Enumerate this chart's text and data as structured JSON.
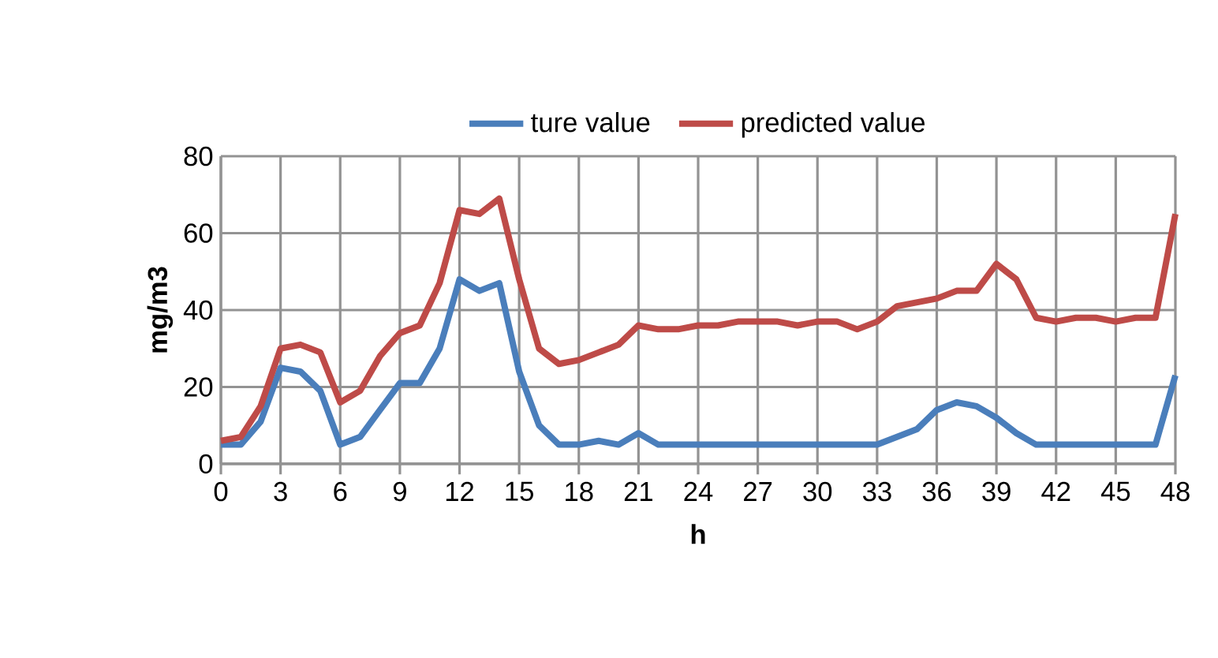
{
  "chart_data": {
    "type": "line",
    "xlabel": "h",
    "ylabel": "mg/m3",
    "x": [
      0,
      1,
      2,
      3,
      4,
      5,
      6,
      7,
      8,
      9,
      10,
      11,
      12,
      13,
      14,
      15,
      16,
      17,
      18,
      19,
      20,
      21,
      22,
      23,
      24,
      25,
      26,
      27,
      28,
      29,
      30,
      31,
      32,
      33,
      34,
      35,
      36,
      37,
      38,
      39,
      40,
      41,
      42,
      43,
      44,
      45,
      46,
      47,
      48
    ],
    "xlim": [
      0,
      48
    ],
    "xticks": [
      0,
      3,
      6,
      9,
      12,
      15,
      18,
      21,
      24,
      27,
      30,
      33,
      36,
      39,
      42,
      45,
      48
    ],
    "ylim": [
      0,
      80
    ],
    "yticks": [
      0,
      20,
      40,
      60,
      80
    ],
    "grid": true,
    "legend": "top",
    "marker": "none",
    "line_style": "solid",
    "series": [
      {
        "name": "ture value",
        "color": "#4a7ebb",
        "values": [
          5,
          5,
          11,
          25,
          24,
          19,
          5,
          7,
          14,
          21,
          21,
          30,
          48,
          45,
          47,
          24,
          10,
          5,
          5,
          6,
          5,
          8,
          5,
          5,
          5,
          5,
          5,
          5,
          5,
          5,
          5,
          5,
          5,
          5,
          7,
          9,
          14,
          16,
          15,
          12,
          8,
          5,
          5,
          5,
          5,
          5,
          5,
          5,
          23
        ]
      },
      {
        "name": "predicted value",
        "color": "#be4b48",
        "values": [
          6,
          7,
          15,
          30,
          31,
          29,
          16,
          19,
          28,
          34,
          36,
          47,
          66,
          65,
          69,
          48,
          30,
          26,
          27,
          29,
          31,
          36,
          35,
          35,
          36,
          36,
          37,
          37,
          37,
          36,
          37,
          37,
          35,
          37,
          41,
          42,
          43,
          45,
          45,
          52,
          48,
          38,
          37,
          38,
          38,
          37,
          38,
          38,
          65
        ]
      }
    ]
  }
}
